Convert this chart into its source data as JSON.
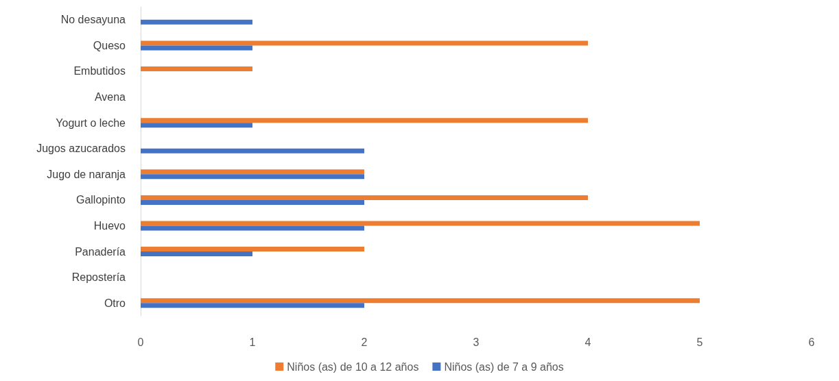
{
  "chart_data": {
    "type": "bar",
    "orientation": "horizontal",
    "categories": [
      "No desayuna",
      "Queso",
      "Embutidos",
      "Avena",
      "Yogurt o leche",
      "Jugos azucarados",
      "Jugo de naranja",
      "Gallopinto",
      "Huevo",
      "Panadería",
      "Repostería",
      "Otro"
    ],
    "series": [
      {
        "name": "Niños (as) de 10 a 12 años",
        "color": "#ed7d31",
        "values": [
          0,
          4,
          1,
          0,
          4,
          0,
          2,
          4,
          5,
          2,
          0,
          5
        ]
      },
      {
        "name": "Niños (as) de 7 a 9 años",
        "color": "#4472c4",
        "values": [
          1,
          1,
          0,
          0,
          1,
          2,
          2,
          2,
          2,
          1,
          0,
          2
        ]
      }
    ],
    "xlim": [
      0,
      6
    ],
    "xticks": [
      0,
      1,
      2,
      3,
      4,
      5,
      6
    ],
    "grid": false,
    "legend": "bottom"
  }
}
